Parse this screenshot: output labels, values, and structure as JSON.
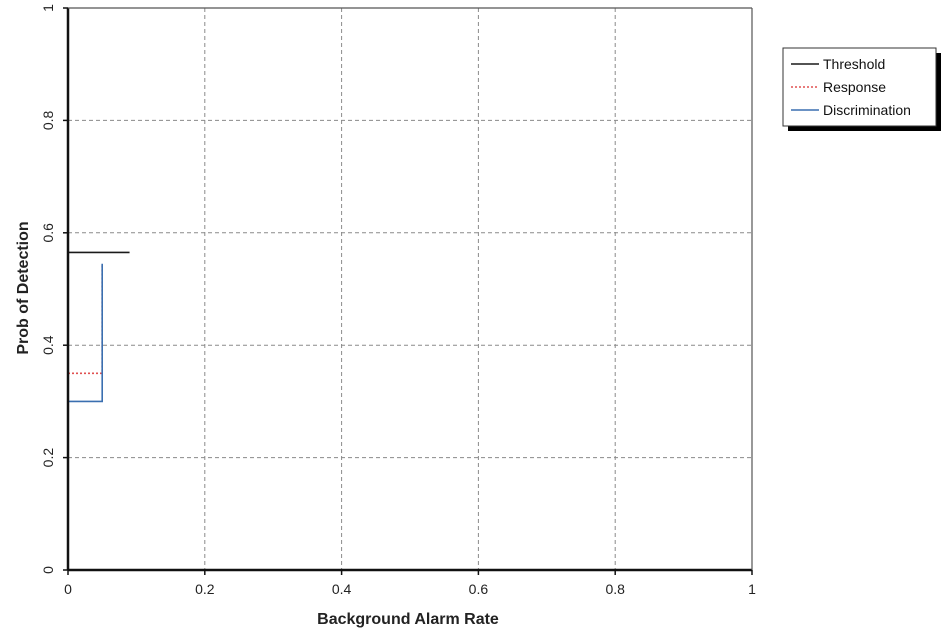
{
  "chart_data": {
    "type": "line",
    "title": "",
    "xlabel": "Background Alarm Rate",
    "ylabel": "Prob of Detection",
    "xlim": [
      0,
      1
    ],
    "ylim": [
      0,
      1
    ],
    "x_ticks": [
      0,
      0.2,
      0.4,
      0.6,
      0.8,
      1
    ],
    "x_tick_labels": [
      "0",
      "0.2",
      "0.4",
      "0.6",
      "0.8",
      "1"
    ],
    "y_ticks": [
      0,
      0.2,
      0.4,
      0.6,
      0.8,
      1
    ],
    "y_tick_labels": [
      "0",
      "0.2",
      "0.4",
      "0.6",
      "0.8",
      "1"
    ],
    "grid": true,
    "legend_position": "top-right outside",
    "series": [
      {
        "name": "Threshold",
        "color": "#1a1a1a",
        "style": "solid",
        "points": [
          [
            0,
            0.565
          ],
          [
            0.09,
            0.565
          ]
        ]
      },
      {
        "name": "Response",
        "color": "#e05050",
        "style": "dotted",
        "points": [
          [
            0,
            0.35
          ],
          [
            0.05,
            0.35
          ],
          [
            0.05,
            0.545
          ]
        ]
      },
      {
        "name": "Discrimination",
        "color": "#3a6fb0",
        "style": "solid",
        "points": [
          [
            0,
            0.3
          ],
          [
            0.05,
            0.3
          ],
          [
            0.05,
            0.545
          ]
        ]
      }
    ]
  }
}
